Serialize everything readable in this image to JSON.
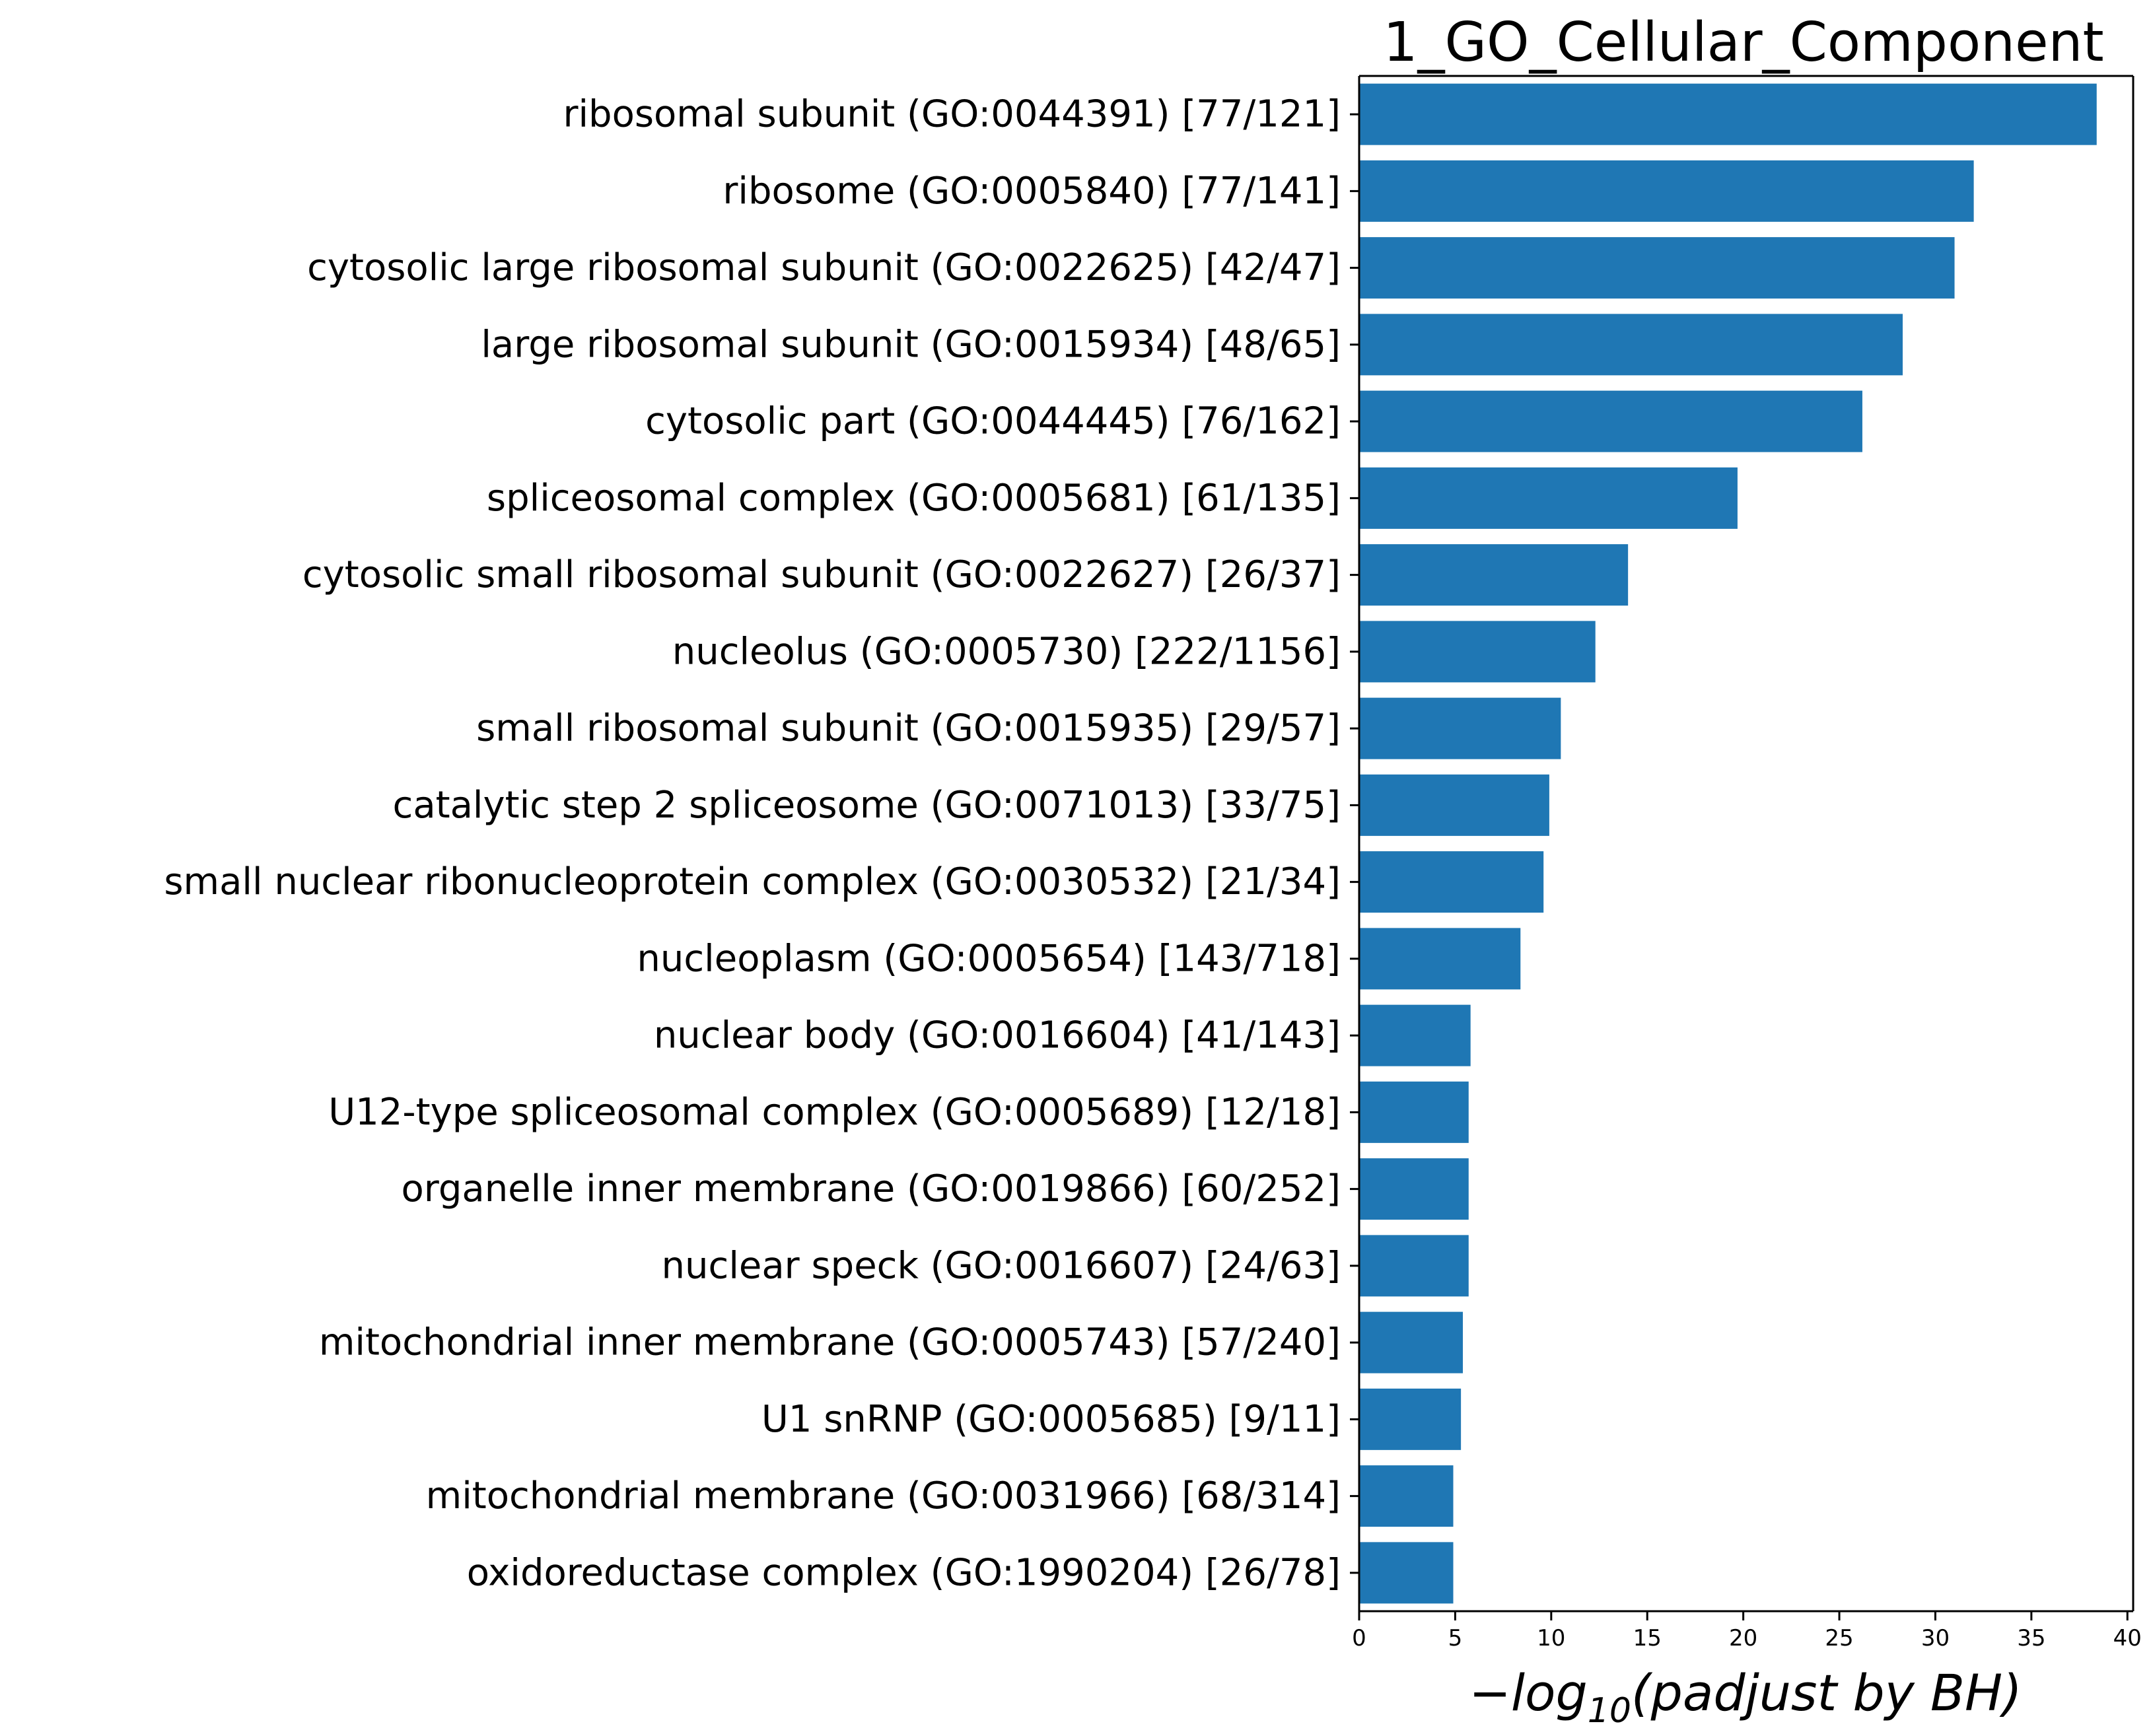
{
  "chart_data": {
    "type": "bar",
    "orientation": "horizontal",
    "title": "1_GO_Cellular_Component",
    "xlabel": {
      "prefix": "−",
      "func": "log",
      "subscript": "10",
      "rest": "(padjust by BH)"
    },
    "ylabel": "",
    "xlim": [
      0,
      40.3
    ],
    "xticks": [
      0,
      5,
      10,
      15,
      20,
      25,
      30,
      35,
      40
    ],
    "grid": false,
    "legend": "none",
    "bar_color": "#1f77b4",
    "categories": [
      "ribosomal subunit (GO:0044391) [77/121]",
      "ribosome (GO:0005840) [77/141]",
      "cytosolic large ribosomal subunit (GO:0022625) [42/47]",
      "large ribosomal subunit (GO:0015934) [48/65]",
      "cytosolic part (GO:0044445) [76/162]",
      "spliceosomal complex (GO:0005681) [61/135]",
      "cytosolic small ribosomal subunit (GO:0022627) [26/37]",
      "nucleolus (GO:0005730) [222/1156]",
      "small ribosomal subunit (GO:0015935) [29/57]",
      "catalytic step 2 spliceosome (GO:0071013) [33/75]",
      "small nuclear ribonucleoprotein complex (GO:0030532) [21/34]",
      "nucleoplasm (GO:0005654) [143/718]",
      "nuclear body (GO:0016604) [41/143]",
      "U12-type spliceosomal complex (GO:0005689) [12/18]",
      "organelle inner membrane (GO:0019866) [60/252]",
      "nuclear speck (GO:0016607) [24/63]",
      "mitochondrial inner membrane (GO:0005743) [57/240]",
      "U1 snRNP (GO:0005685) [9/11]",
      "mitochondrial membrane (GO:0031966) [68/314]",
      "oxidoreductase complex (GO:1990204) [26/78]"
    ],
    "values": [
      38.4,
      32.0,
      31.0,
      28.3,
      26.2,
      19.7,
      14.0,
      12.3,
      10.5,
      9.9,
      9.6,
      8.4,
      5.8,
      5.7,
      5.7,
      5.7,
      5.4,
      5.3,
      4.9,
      4.9
    ]
  }
}
